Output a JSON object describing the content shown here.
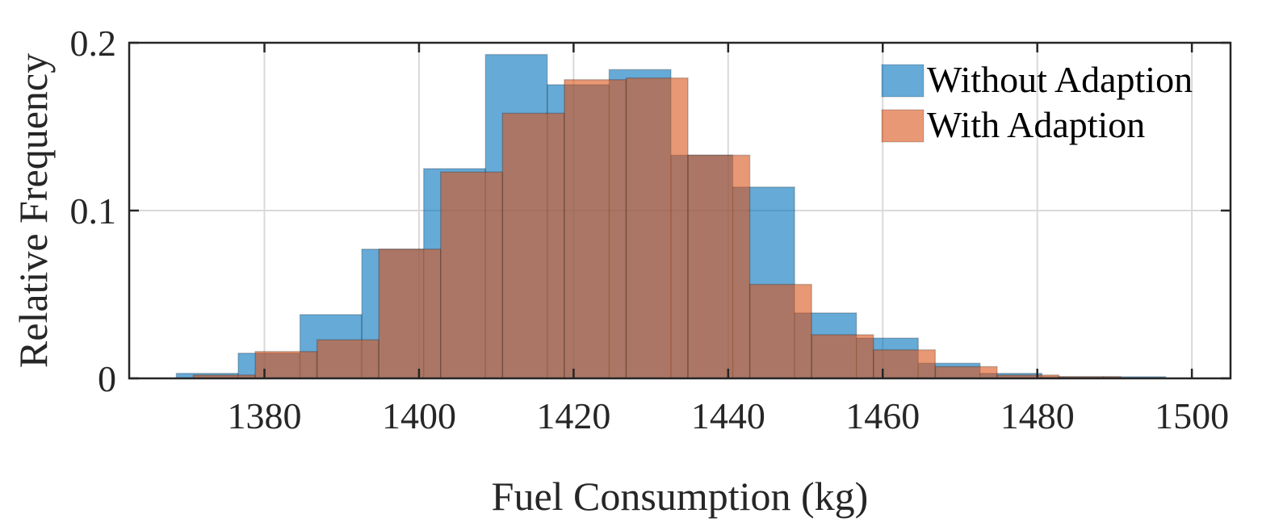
{
  "chart_data": {
    "type": "histogram",
    "title": "",
    "xlabel": "Fuel Consumption (kg)",
    "ylabel": "Relative Frequency",
    "xlim": [
      1362.5,
      1505
    ],
    "ylim": [
      0,
      0.2
    ],
    "xticks": [
      1380,
      1400,
      1420,
      1440,
      1460,
      1480,
      1500
    ],
    "yticks": [
      0,
      0.1,
      0.2
    ],
    "ytick_labels": [
      "0",
      "0.1",
      "0.2"
    ],
    "grid": true,
    "legend_position": "top-right",
    "series": [
      {
        "name": "Without Adaption",
        "color": "#0072BD",
        "bin_edges": [
          1368.6,
          1376.6,
          1384.6,
          1392.6,
          1400.6,
          1408.6,
          1416.6,
          1424.6,
          1432.6,
          1440.6,
          1448.6,
          1456.6,
          1464.6,
          1472.6,
          1480.6,
          1488.6,
          1496.6
        ],
        "values": [
          0.003,
          0.015,
          0.038,
          0.077,
          0.125,
          0.193,
          0.175,
          0.184,
          0.133,
          0.114,
          0.039,
          0.024,
          0.009,
          0.003,
          0.001,
          0.001
        ]
      },
      {
        "name": "With Adaption",
        "color": "#D95319",
        "bin_edges": [
          1370.8,
          1378.8,
          1386.8,
          1394.8,
          1402.8,
          1410.8,
          1418.8,
          1426.8,
          1434.8,
          1442.8,
          1450.8,
          1458.8,
          1466.8,
          1474.8,
          1482.8,
          1490.8
        ],
        "values": [
          0.002,
          0.016,
          0.023,
          0.077,
          0.123,
          0.158,
          0.178,
          0.179,
          0.133,
          0.056,
          0.026,
          0.017,
          0.007,
          0.002,
          0.001
        ]
      }
    ]
  }
}
